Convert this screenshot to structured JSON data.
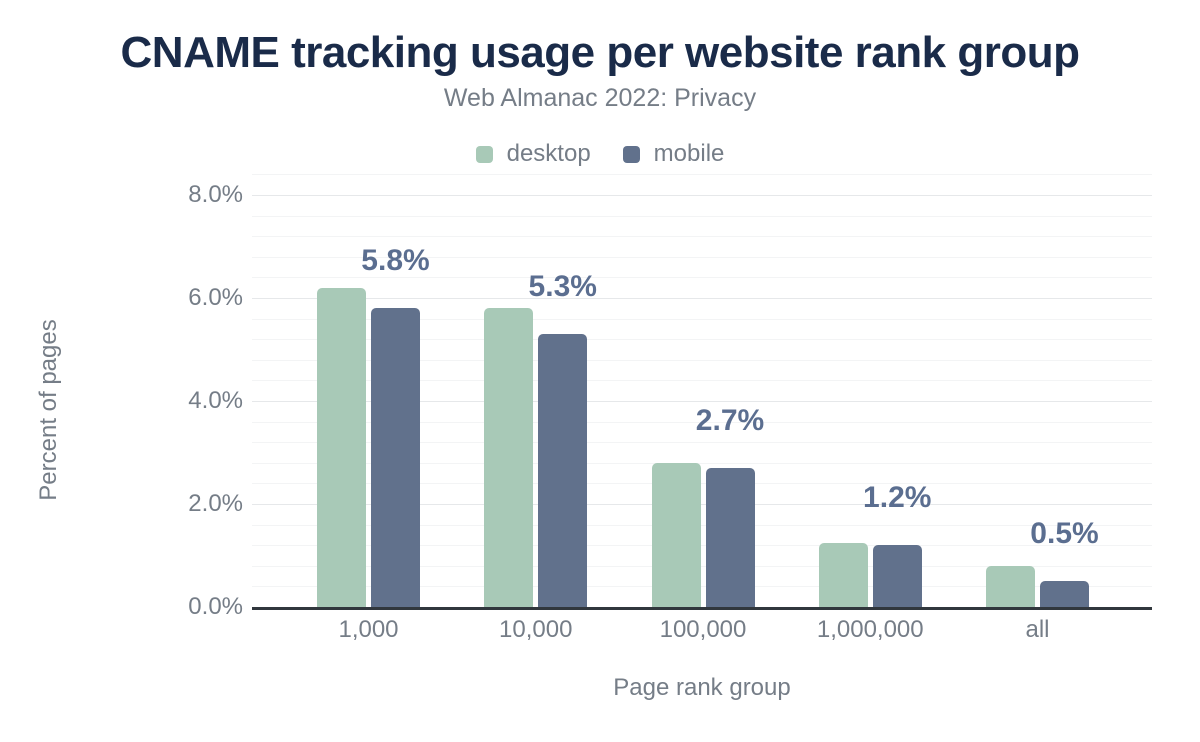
{
  "title": "CNAME tracking usage per website rank group",
  "subtitle": "Web Almanac 2022: Privacy",
  "colors": {
    "title": "#1a2b49",
    "axis_text": "#757d87",
    "axis_line": "#31373d",
    "gridline_major": "#e6e8ea",
    "gridline_minor": "#f3f4f5",
    "bar_label": "#5b6e90",
    "desktop": "#a8c9b7",
    "mobile": "#61718c"
  },
  "chart_data": {
    "type": "bar",
    "title": "CNAME tracking usage per website rank group",
    "subtitle": "Web Almanac 2022: Privacy",
    "categories": [
      "1,000",
      "10,000",
      "100,000",
      "1,000,000",
      "all"
    ],
    "series": [
      {
        "name": "desktop",
        "color": "#a8c9b7",
        "values": [
          6.2,
          5.8,
          2.8,
          1.25,
          0.8
        ]
      },
      {
        "name": "mobile",
        "color": "#61718c",
        "values": [
          5.8,
          5.3,
          2.7,
          1.2,
          0.5
        ]
      }
    ],
    "bar_labels": [
      "5.8%",
      "5.3%",
      "2.7%",
      "1.2%",
      "0.5%"
    ],
    "bar_labels_series": "mobile",
    "xlabel": "Page rank group",
    "ylabel": "Percent of pages",
    "ylim": [
      0,
      8
    ],
    "y_tick_labels": [
      "8.0%",
      "6.0%",
      "4.0%",
      "2.0%",
      "0.0%"
    ],
    "y_tick_step": 2,
    "y_minor_gridline_step": 0.4,
    "grid": true,
    "legend_position": "top"
  }
}
